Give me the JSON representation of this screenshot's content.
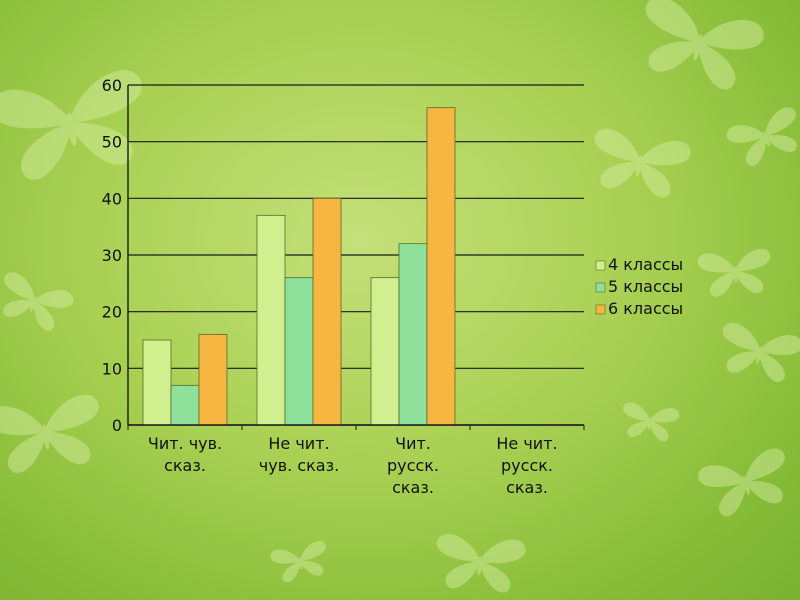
{
  "chart_data": {
    "type": "bar",
    "categories": [
      [
        "Чит. чув.",
        "сказ."
      ],
      [
        "Не чит.",
        "чув. сказ."
      ],
      [
        "Чит.",
        "русск.",
        "сказ."
      ],
      [
        "Не чит.",
        "русск.",
        "сказ."
      ]
    ],
    "series": [
      {
        "name": "4 классы",
        "values": [
          15,
          37,
          26,
          null
        ],
        "color": "#d2ef8f"
      },
      {
        "name": "5 классы",
        "values": [
          7,
          26,
          32,
          null
        ],
        "color": "#8ee09b"
      },
      {
        "name": "6 классы",
        "values": [
          16,
          40,
          56,
          null
        ],
        "color": "#f7b542"
      }
    ],
    "ylim": [
      0,
      60
    ],
    "yticks": [
      0,
      10,
      20,
      30,
      40,
      50,
      60
    ],
    "grid": true,
    "legend": "right"
  },
  "colors": {
    "gridline": "#1a1a1a",
    "bar_outline": "#5a6b2a",
    "butterfly": "#cfe89a"
  }
}
